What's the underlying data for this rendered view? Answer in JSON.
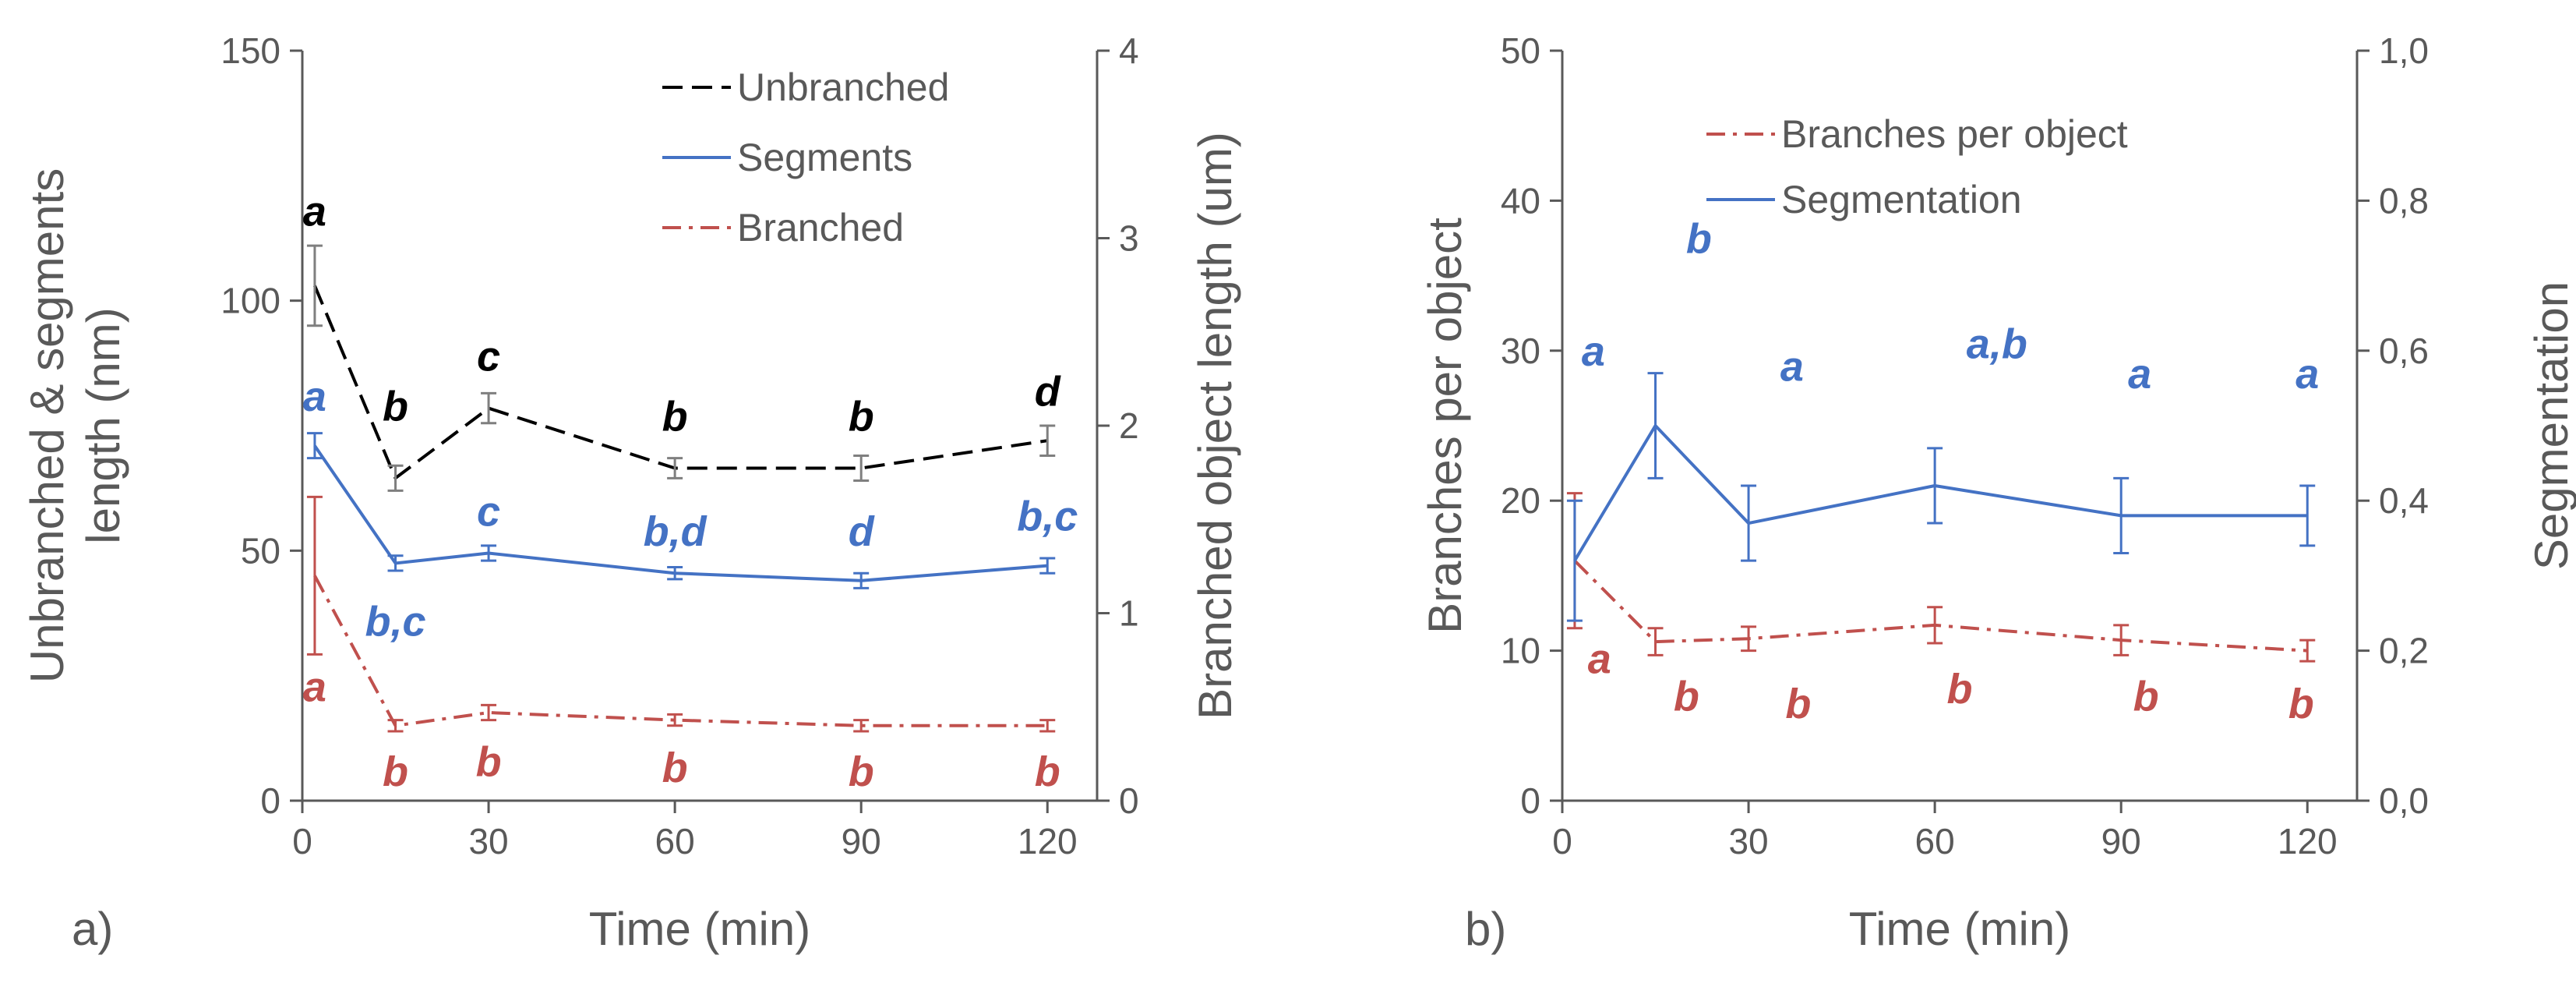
{
  "chart_data": [
    {
      "type": "line",
      "panel_label": "a)",
      "x": [
        2,
        15,
        30,
        60,
        90,
        120
      ],
      "xlabel": "Time (min)",
      "xticks": [
        "0",
        "30",
        "60",
        "90",
        "120"
      ],
      "xlim": [
        0,
        128
      ],
      "ylabel": "Unbranched & segments length (nm)",
      "ylabel_lines": [
        "Unbranched & segments",
        "length (nm)"
      ],
      "ylim": [
        0,
        150
      ],
      "yticks": [
        "0",
        "50",
        "100",
        "150"
      ],
      "y2label": "Branched object length (um)",
      "y2lim": [
        0,
        4
      ],
      "y2ticks": [
        "0",
        "1",
        "2",
        "3",
        "4"
      ],
      "legend_position": "top-right",
      "series": [
        {
          "name": "Unbranched",
          "axis": "left",
          "style": "dashed",
          "color": "#000000",
          "values": [
            103,
            64.5,
            78.5,
            66.5,
            66.5,
            72
          ],
          "errors": [
            8,
            2.5,
            3,
            2,
            2.5,
            3
          ],
          "error_color": "#7f7f7f",
          "annotation_color": "#000000",
          "annotations": [
            {
              "x": 2,
              "y": 115,
              "text": "a"
            },
            {
              "x": 15,
              "y": 76,
              "text": "b"
            },
            {
              "x": 30,
              "y": 86,
              "text": "c"
            },
            {
              "x": 60,
              "y": 74,
              "text": "b"
            },
            {
              "x": 90,
              "y": 74,
              "text": "b"
            },
            {
              "x": 120,
              "y": 79,
              "text": "d"
            }
          ]
        },
        {
          "name": "Segments",
          "axis": "left",
          "style": "solid",
          "color": "#4472c4",
          "values": [
            71,
            47.5,
            49.5,
            45.5,
            44,
            47
          ],
          "errors": [
            2.5,
            1.5,
            1.5,
            1.2,
            1.5,
            1.5
          ],
          "error_color": "#4472c4",
          "annotation_color": "#4472c4",
          "annotations": [
            {
              "x": 2,
              "y": 78,
              "text": "a"
            },
            {
              "x": 15,
              "y": 33,
              "text": "b,c"
            },
            {
              "x": 30,
              "y": 55,
              "text": "c"
            },
            {
              "x": 60,
              "y": 51,
              "text": "b,d"
            },
            {
              "x": 90,
              "y": 51,
              "text": "d"
            },
            {
              "x": 120,
              "y": 54,
              "text": "b,c"
            }
          ]
        },
        {
          "name": "Branched",
          "axis": "right",
          "style": "dashdot",
          "color": "#c0504d",
          "values": [
            1.2,
            0.4,
            0.47,
            0.43,
            0.4,
            0.4
          ],
          "errors": [
            0.42,
            0.03,
            0.04,
            0.03,
            0.03,
            0.03
          ],
          "error_color": "#c0504d",
          "annotation_color": "#c0504d",
          "annotations": [
            {
              "x": 2,
              "y": 0.53,
              "text": "a"
            },
            {
              "x": 15,
              "y": 0.08,
              "text": "b"
            },
            {
              "x": 30,
              "y": 0.13,
              "text": "b"
            },
            {
              "x": 60,
              "y": 0.1,
              "text": "b"
            },
            {
              "x": 90,
              "y": 0.08,
              "text": "b"
            },
            {
              "x": 120,
              "y": 0.08,
              "text": "b"
            }
          ]
        }
      ]
    },
    {
      "type": "line",
      "panel_label": "b)",
      "x": [
        2,
        15,
        30,
        60,
        90,
        120
      ],
      "xlabel": "Time (min)",
      "xticks": [
        "0",
        "30",
        "60",
        "90",
        "120"
      ],
      "xlim": [
        0,
        128
      ],
      "ylabel": "Branches per object",
      "ylabel_lines": [
        "Branches per object"
      ],
      "ylim": [
        0,
        50
      ],
      "yticks": [
        "0",
        "10",
        "20",
        "30",
        "40",
        "50"
      ],
      "y2label": "Segmentation",
      "y2lim": [
        0,
        1
      ],
      "y2ticks": [
        "0,0",
        "0,2",
        "0,4",
        "0,6",
        "0,8",
        "1,0"
      ],
      "legend_position": "top-right",
      "series": [
        {
          "name": "Branches per object",
          "axis": "left",
          "style": "dashdot",
          "color": "#c0504d",
          "values": [
            16,
            10.6,
            10.8,
            11.7,
            10.7,
            10
          ],
          "errors": [
            4.5,
            0.9,
            0.8,
            1.2,
            1,
            0.7
          ],
          "error_color": "#c0504d",
          "annotation_color": "#c0504d",
          "annotations": [
            {
              "x": 6,
              "y": 8.5,
              "text": "a"
            },
            {
              "x": 20,
              "y": 6,
              "text": "b"
            },
            {
              "x": 38,
              "y": 5.5,
              "text": "b"
            },
            {
              "x": 64,
              "y": 6.5,
              "text": "b"
            },
            {
              "x": 94,
              "y": 6,
              "text": "b"
            },
            {
              "x": 119,
              "y": 5.5,
              "text": "b"
            }
          ]
        },
        {
          "name": "Segmentation",
          "axis": "right",
          "style": "solid",
          "color": "#4472c4",
          "values": [
            0.32,
            0.5,
            0.37,
            0.42,
            0.38,
            0.38
          ],
          "errors": [
            0.08,
            0.07,
            0.05,
            0.05,
            0.05,
            0.04
          ],
          "error_color": "#4472c4",
          "annotation_color": "#4472c4",
          "annotations": [
            {
              "x": 5,
              "y": 0.58,
              "text": "a"
            },
            {
              "x": 22,
              "y": 0.73,
              "text": "b"
            },
            {
              "x": 37,
              "y": 0.56,
              "text": "a"
            },
            {
              "x": 70,
              "y": 0.59,
              "text": "a,b"
            },
            {
              "x": 93,
              "y": 0.55,
              "text": "a"
            },
            {
              "x": 120,
              "y": 0.55,
              "text": "a"
            }
          ]
        }
      ]
    }
  ]
}
